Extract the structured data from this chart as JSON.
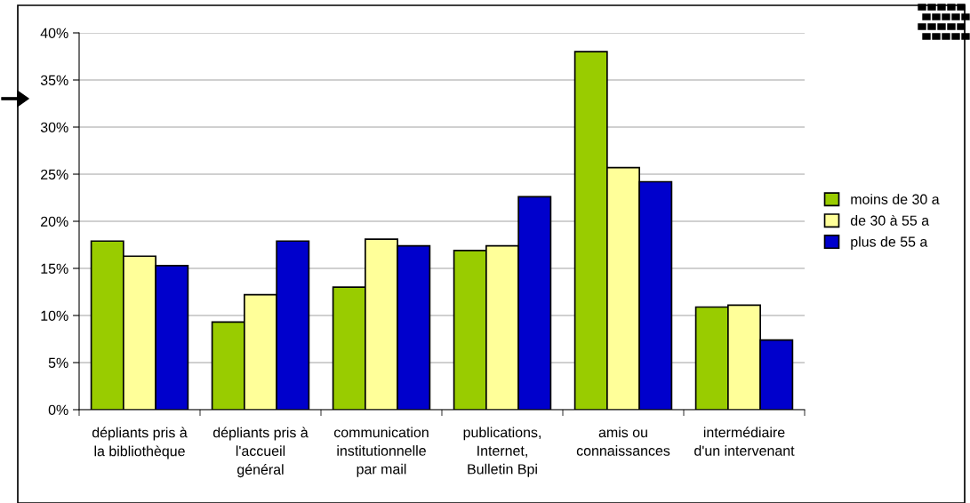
{
  "chart_data": {
    "type": "bar",
    "categories": [
      "dépliants pris à\nla bibliothèque",
      "dépliants pris à\nl'accueil\ngénéral",
      "communication\ninstitutionnelle\npar mail",
      "publications,\nInternet,\nBulletin Bpi",
      "amis ou\nconnaissances",
      "intermédiaire\nd'un intervenant"
    ],
    "series": [
      {
        "name": "moins de 30 a",
        "color": "#99cc00",
        "values": [
          17.9,
          9.3,
          13.0,
          16.9,
          38.0,
          10.9
        ]
      },
      {
        "name": "de 30 à 55 a",
        "color": "#ffff99",
        "values": [
          16.3,
          12.2,
          18.1,
          17.4,
          25.7,
          11.1
        ]
      },
      {
        "name": "plus de 55 a",
        "color": "#0000cc",
        "values": [
          15.3,
          17.9,
          17.4,
          22.6,
          24.2,
          7.4
        ]
      }
    ],
    "ylim": [
      0,
      40
    ],
    "yticks": [
      {
        "value": 0,
        "label": "0%"
      },
      {
        "value": 5,
        "label": "5%"
      },
      {
        "value": 10,
        "label": "10%"
      },
      {
        "value": 15,
        "label": "15%"
      },
      {
        "value": 20,
        "label": "20%"
      },
      {
        "value": 25,
        "label": "25%"
      },
      {
        "value": 30,
        "label": "30%"
      },
      {
        "value": 35,
        "label": "35%"
      },
      {
        "value": 40,
        "label": "40%"
      }
    ],
    "grid": "y",
    "legend": "right"
  }
}
